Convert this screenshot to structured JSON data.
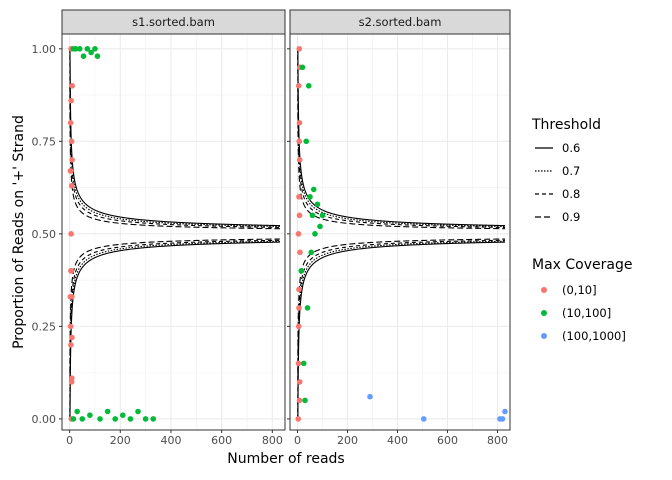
{
  "chart_data": {
    "type": "scatter",
    "xlabel": "Number of reads",
    "ylabel": "Proportion of Reads on '+' Strand",
    "xlim": [
      -30,
      850
    ],
    "ylim": [
      -0.03,
      1.04
    ],
    "x_ticks": [
      0,
      200,
      400,
      600,
      800
    ],
    "x_tick_labels": [
      "0",
      "200",
      "400",
      "600",
      "800"
    ],
    "y_ticks": [
      0,
      0.25,
      0.5,
      0.75,
      1
    ],
    "y_tick_labels": [
      "0.00",
      "0.25",
      "0.50",
      "0.75",
      "1.00"
    ],
    "grid": true,
    "legend_placement": "right",
    "panels": [
      {
        "name": "s1.sorted.bam",
        "points": [
          {
            "x": 4,
            "y": 0.8,
            "group": "(0,10]"
          },
          {
            "x": 5,
            "y": 0.67,
            "group": "(0,10]"
          },
          {
            "x": 6,
            "y": 1.0,
            "group": "(0,10]"
          },
          {
            "x": 7,
            "y": 0.0,
            "group": "(0,10]"
          },
          {
            "x": 8,
            "y": 0.75,
            "group": "(0,10]"
          },
          {
            "x": 9,
            "y": 0.33,
            "group": "(0,10]"
          },
          {
            "x": 6,
            "y": 0.5,
            "group": "(0,10]"
          },
          {
            "x": 10,
            "y": 0.9,
            "group": "(0,10]"
          },
          {
            "x": 3,
            "y": 0.33,
            "group": "(0,10]"
          },
          {
            "x": 5,
            "y": 0.2,
            "group": "(0,10]"
          },
          {
            "x": 8,
            "y": 0.1,
            "group": "(0,10]"
          },
          {
            "x": 9,
            "y": 0.22,
            "group": "(0,10]"
          },
          {
            "x": 7,
            "y": 0.4,
            "group": "(0,10]"
          },
          {
            "x": 4,
            "y": 0.25,
            "group": "(0,10]"
          },
          {
            "x": 10,
            "y": 0.7,
            "group": "(0,10]"
          },
          {
            "x": 6,
            "y": 0.86,
            "group": "(0,10]"
          },
          {
            "x": 3,
            "y": 0.67,
            "group": "(0,10]"
          },
          {
            "x": 8,
            "y": 0.63,
            "group": "(0,10]"
          },
          {
            "x": 5,
            "y": 0.4,
            "group": "(0,10]"
          },
          {
            "x": 9,
            "y": 0.11,
            "group": "(0,10]"
          },
          {
            "x": 15,
            "y": 1.0,
            "group": "(10,100]"
          },
          {
            "x": 25,
            "y": 1.0,
            "group": "(10,100]"
          },
          {
            "x": 40,
            "y": 1.0,
            "group": "(10,100]"
          },
          {
            "x": 55,
            "y": 0.98,
            "group": "(10,100]"
          },
          {
            "x": 70,
            "y": 1.0,
            "group": "(10,100]"
          },
          {
            "x": 85,
            "y": 0.99,
            "group": "(10,100]"
          },
          {
            "x": 100,
            "y": 1.0,
            "group": "(10,100]"
          },
          {
            "x": 110,
            "y": 0.98,
            "group": "(10,100]"
          },
          {
            "x": 15,
            "y": 0.0,
            "group": "(10,100]"
          },
          {
            "x": 30,
            "y": 0.02,
            "group": "(10,100]"
          },
          {
            "x": 50,
            "y": 0.0,
            "group": "(10,100]"
          },
          {
            "x": 80,
            "y": 0.01,
            "group": "(10,100]"
          },
          {
            "x": 120,
            "y": 0.0,
            "group": "(10,100]"
          },
          {
            "x": 150,
            "y": 0.02,
            "group": "(10,100]"
          },
          {
            "x": 180,
            "y": 0.0,
            "group": "(10,100]"
          },
          {
            "x": 210,
            "y": 0.01,
            "group": "(10,100]"
          },
          {
            "x": 240,
            "y": 0.0,
            "group": "(10,100]"
          },
          {
            "x": 270,
            "y": 0.02,
            "group": "(10,100]"
          },
          {
            "x": 300,
            "y": 0.0,
            "group": "(10,100]"
          },
          {
            "x": 330,
            "y": 0.0,
            "group": "(10,100]"
          }
        ]
      },
      {
        "name": "s2.sorted.bam",
        "points": [
          {
            "x": 5,
            "y": 0.9,
            "group": "(0,10]"
          },
          {
            "x": 8,
            "y": 0.55,
            "group": "(0,10]"
          },
          {
            "x": 6,
            "y": 0.3,
            "group": "(0,10]"
          },
          {
            "x": 9,
            "y": 0.7,
            "group": "(0,10]"
          },
          {
            "x": 4,
            "y": 0.15,
            "group": "(0,10]"
          },
          {
            "x": 7,
            "y": 1.0,
            "group": "(0,10]"
          },
          {
            "x": 10,
            "y": 0.45,
            "group": "(0,10]"
          },
          {
            "x": 3,
            "y": 0.0,
            "group": "(0,10]"
          },
          {
            "x": 8,
            "y": 0.8,
            "group": "(0,10]"
          },
          {
            "x": 6,
            "y": 0.6,
            "group": "(0,10]"
          },
          {
            "x": 5,
            "y": 0.25,
            "group": "(0,10]"
          },
          {
            "x": 9,
            "y": 0.1,
            "group": "(0,10]"
          },
          {
            "x": 7,
            "y": 0.75,
            "group": "(0,10]"
          },
          {
            "x": 4,
            "y": 0.5,
            "group": "(0,10]"
          },
          {
            "x": 10,
            "y": 0.95,
            "group": "(0,10]"
          },
          {
            "x": 6,
            "y": 0.35,
            "group": "(0,10]"
          },
          {
            "x": 8,
            "y": 0.05,
            "group": "(0,10]"
          },
          {
            "x": 20,
            "y": 0.95,
            "group": "(10,100]"
          },
          {
            "x": 35,
            "y": 0.75,
            "group": "(10,100]"
          },
          {
            "x": 50,
            "y": 0.6,
            "group": "(10,100]"
          },
          {
            "x": 60,
            "y": 0.55,
            "group": "(10,100]"
          },
          {
            "x": 70,
            "y": 0.5,
            "group": "(10,100]"
          },
          {
            "x": 80,
            "y": 0.58,
            "group": "(10,100]"
          },
          {
            "x": 90,
            "y": 0.52,
            "group": "(10,100]"
          },
          {
            "x": 100,
            "y": 0.55,
            "group": "(10,100]"
          },
          {
            "x": 40,
            "y": 0.3,
            "group": "(10,100]"
          },
          {
            "x": 25,
            "y": 0.15,
            "group": "(10,100]"
          },
          {
            "x": 55,
            "y": 0.45,
            "group": "(10,100]"
          },
          {
            "x": 30,
            "y": 0.05,
            "group": "(10,100]"
          },
          {
            "x": 65,
            "y": 0.62,
            "group": "(10,100]"
          },
          {
            "x": 45,
            "y": 0.9,
            "group": "(10,100]"
          },
          {
            "x": 15,
            "y": 0.4,
            "group": "(10,100]"
          },
          {
            "x": 290,
            "y": 0.06,
            "group": "(100,1000]"
          },
          {
            "x": 505,
            "y": 0.0,
            "group": "(100,1000]"
          },
          {
            "x": 810,
            "y": 0.0,
            "group": "(100,1000]"
          },
          {
            "x": 820,
            "y": 0.0,
            "group": "(100,1000]"
          },
          {
            "x": 830,
            "y": 0.02,
            "group": "(100,1000]"
          }
        ]
      }
    ],
    "threshold_curves": [
      {
        "name": "0.6",
        "dash": "solid"
      },
      {
        "name": "0.7",
        "dash": "dotted"
      },
      {
        "name": "0.8",
        "dash": "dashed"
      },
      {
        "name": "0.9",
        "dash": "longdash"
      }
    ],
    "legends": {
      "threshold": {
        "title": "Threshold",
        "items": [
          "0.6",
          "0.7",
          "0.8",
          "0.9"
        ]
      },
      "coverage": {
        "title": "Max Coverage",
        "items": [
          {
            "label": "(0,10]",
            "color": "#F8766D"
          },
          {
            "label": "(10,100]",
            "color": "#00BA38"
          },
          {
            "label": "(100,1000]",
            "color": "#619CFF"
          }
        ]
      }
    }
  }
}
